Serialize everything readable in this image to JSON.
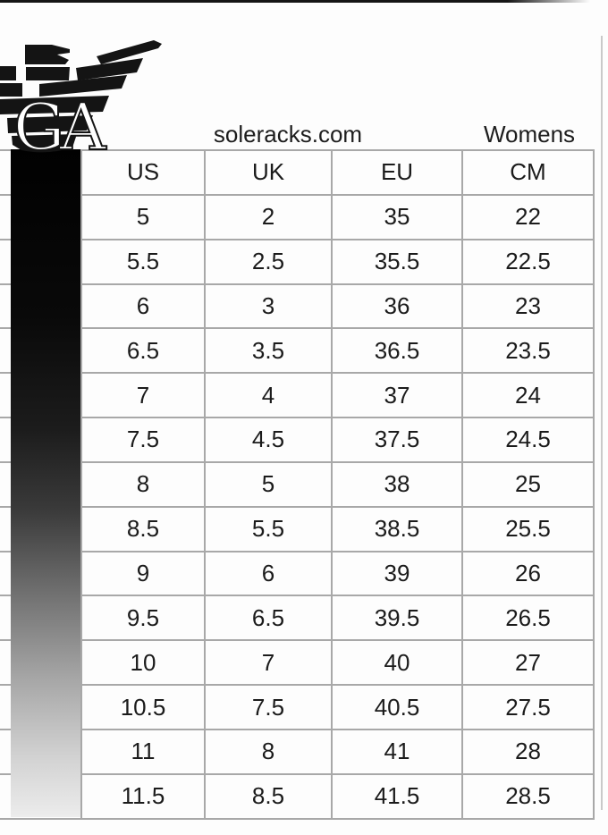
{
  "header": {
    "site": "soleracks.com",
    "segment": "Womens"
  },
  "logo": {
    "name": "armani-eagle-logo",
    "monogram": "GA"
  },
  "chart_data": {
    "type": "table",
    "columns": [
      "US",
      "UK",
      "EU",
      "CM"
    ],
    "rows": [
      [
        "5",
        "2",
        "35",
        "22"
      ],
      [
        "5.5",
        "2.5",
        "35.5",
        "22.5"
      ],
      [
        "6",
        "3",
        "36",
        "23"
      ],
      [
        "6.5",
        "3.5",
        "36.5",
        "23.5"
      ],
      [
        "7",
        "4",
        "37",
        "24"
      ],
      [
        "7.5",
        "4.5",
        "37.5",
        "24.5"
      ],
      [
        "8",
        "5",
        "38",
        "25"
      ],
      [
        "8.5",
        "5.5",
        "38.5",
        "25.5"
      ],
      [
        "9",
        "6",
        "39",
        "26"
      ],
      [
        "9.5",
        "6.5",
        "39.5",
        "26.5"
      ],
      [
        "10",
        "7",
        "40",
        "27"
      ],
      [
        "10.5",
        "7.5",
        "40.5",
        "27.5"
      ],
      [
        "11",
        "8",
        "41",
        "28"
      ],
      [
        "11.5",
        "8.5",
        "41.5",
        "28.5"
      ]
    ]
  },
  "colors": {
    "grid_line": "#a8a8a8",
    "text": "#1b1b1b",
    "logo_black": "#141414",
    "crop_line": "#c9c9c9"
  }
}
